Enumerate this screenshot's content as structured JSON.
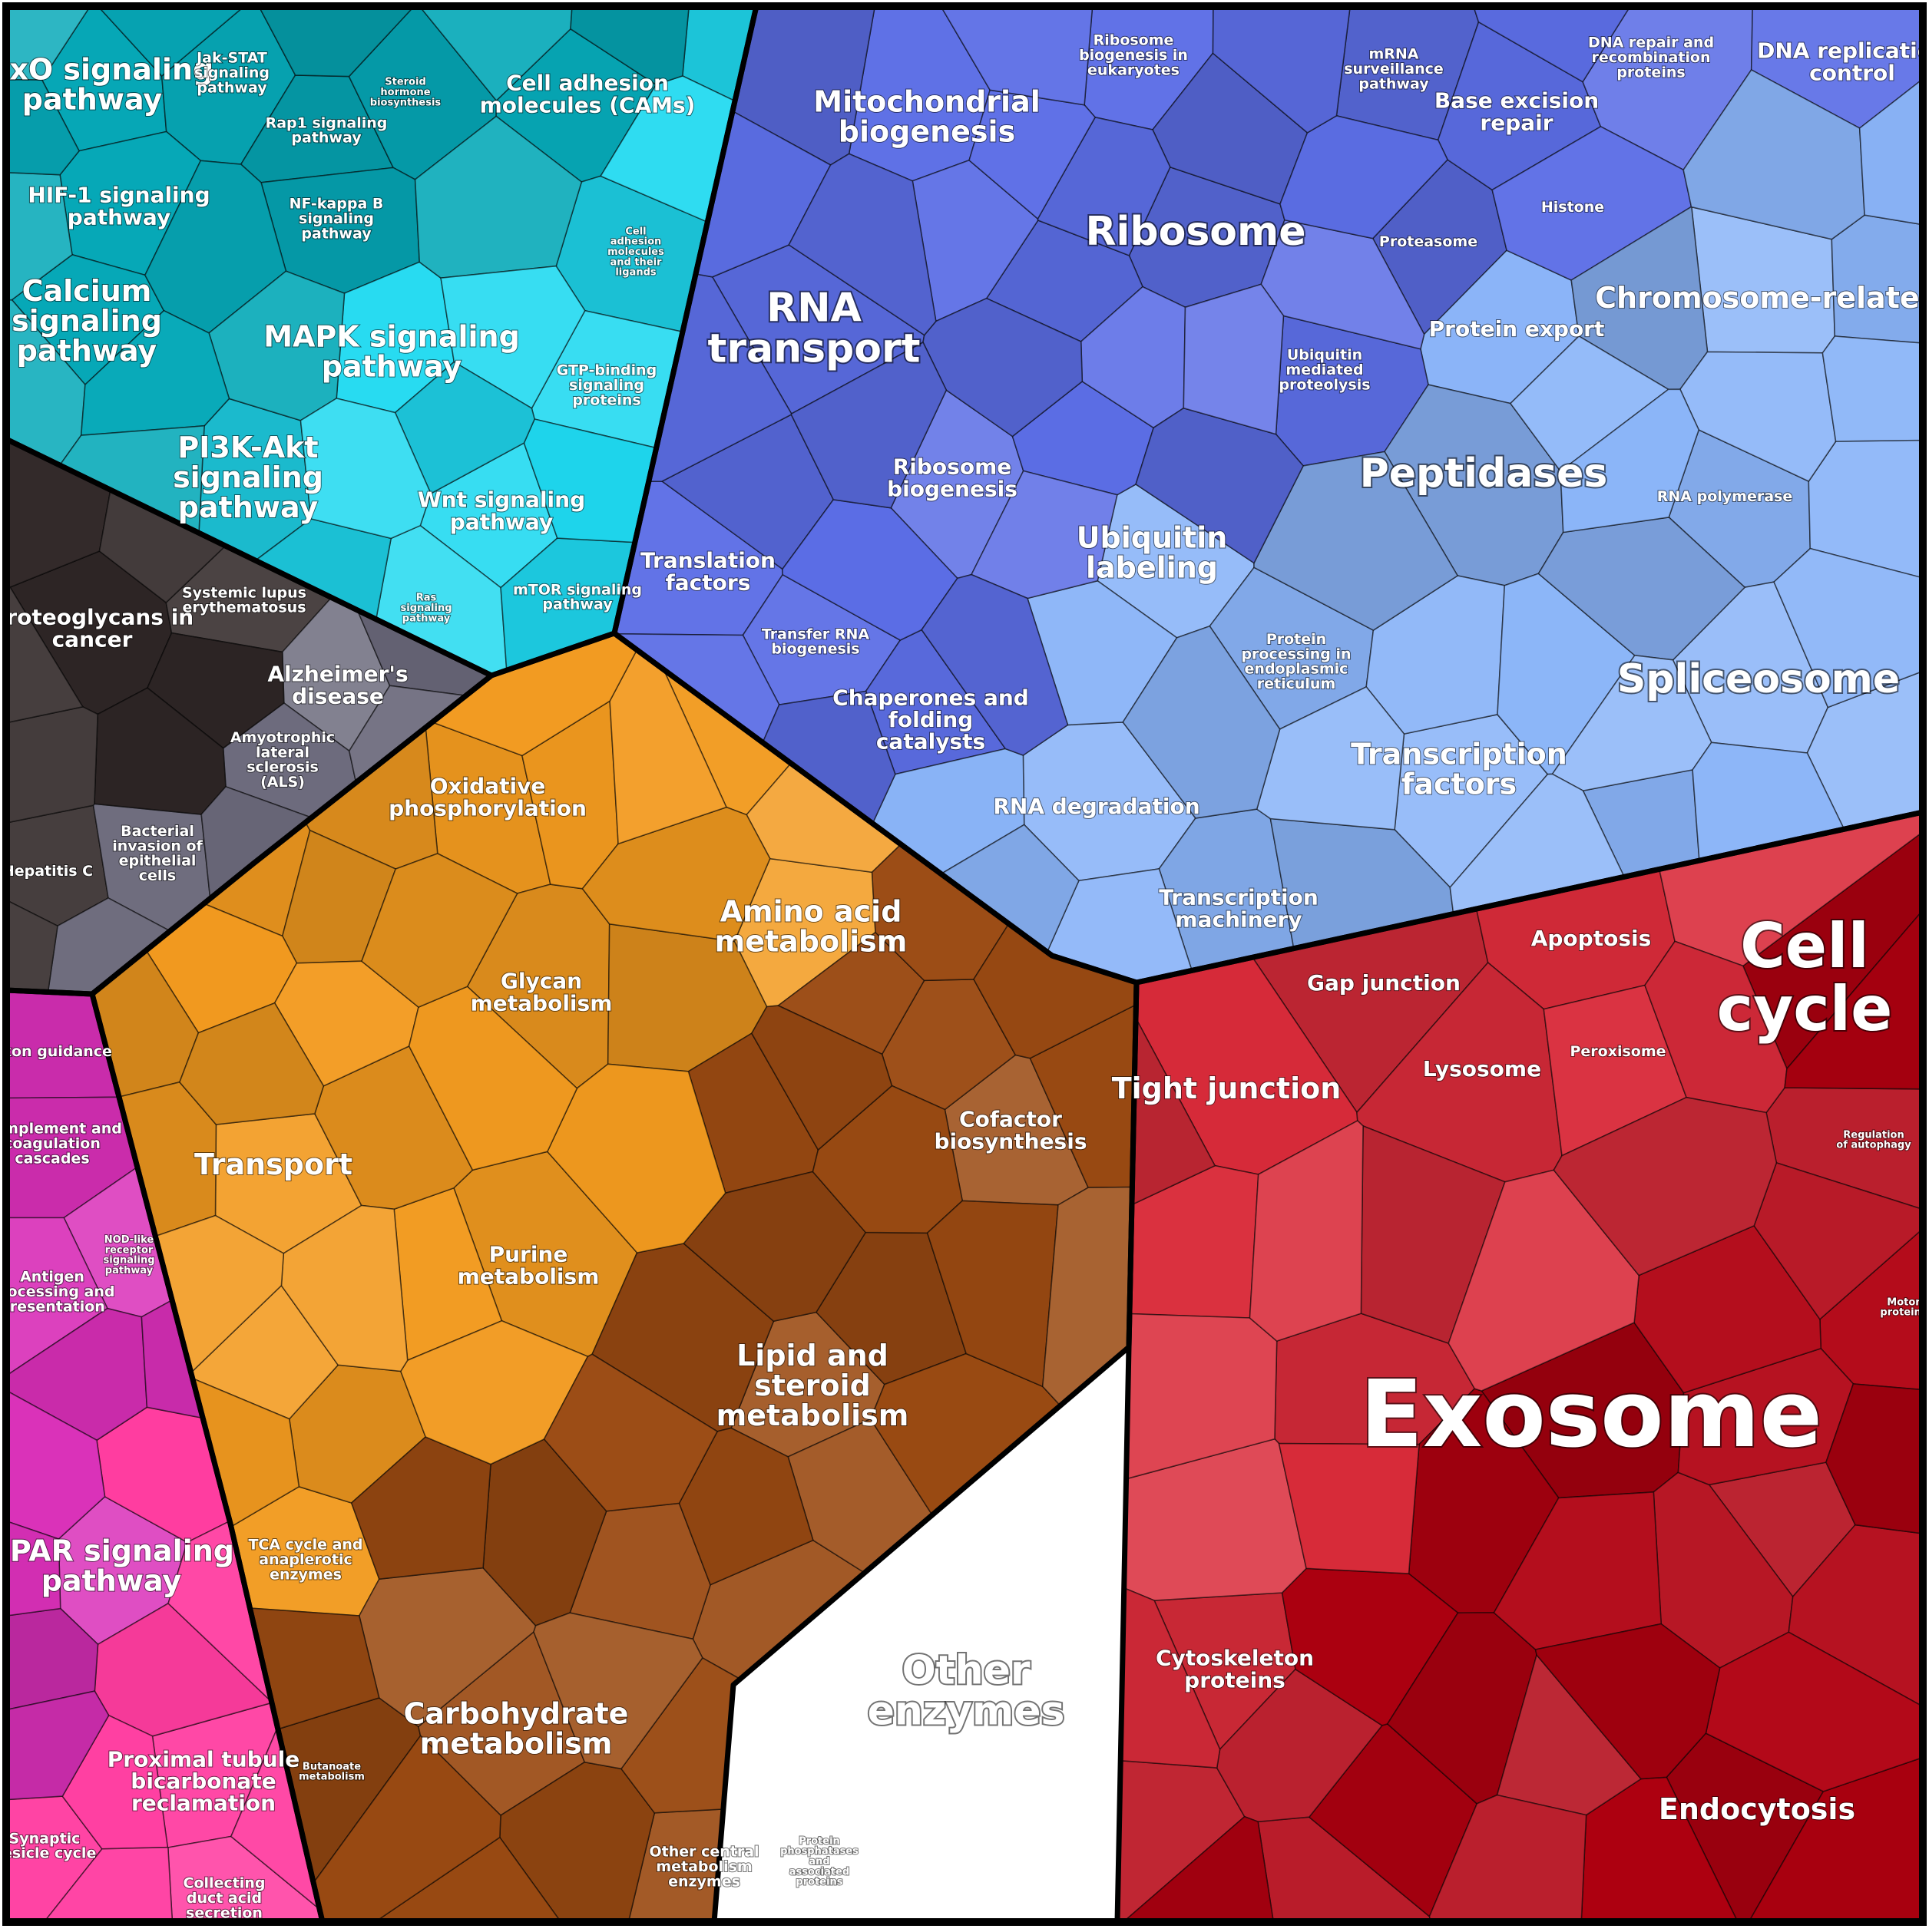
{
  "colors": {
    "signaling_teal": "#06a9b8",
    "signaling_cyan": "#1fd9f0",
    "disease_dark": "#332a2a",
    "genetic_blue": "#5c6ee6",
    "metabolism_orange": "#f29a1f",
    "cellular_red": "#d92b3a",
    "organismal_magenta": "#d92fb8",
    "border": "#000000"
  },
  "groups": [
    {
      "key": "signaling",
      "labels": [
        {
          "text": "FoxO signaling pathway",
          "tier": "l"
        },
        {
          "text": "Jak-STAT signaling pathway",
          "tier": "s"
        },
        {
          "text": "Rap1 signaling pathway",
          "tier": "s"
        },
        {
          "text": "Steroid hormone biosynthesis",
          "tier": "t"
        },
        {
          "text": "Cell adhesion molecules (CAMs)",
          "tier": "m"
        },
        {
          "text": "HIF-1 signaling pathway",
          "tier": "m"
        },
        {
          "text": "NF-kappa B signaling pathway",
          "tier": "s"
        },
        {
          "text": "Calcium signaling pathway",
          "tier": "l"
        },
        {
          "text": "MAPK signaling pathway",
          "tier": "l"
        },
        {
          "text": "Cell adhesion molecules and their ligands",
          "tier": "t"
        },
        {
          "text": "GTP-binding signaling proteins",
          "tier": "s"
        },
        {
          "text": "PI3K-Akt signaling pathway",
          "tier": "l"
        },
        {
          "text": "Wnt signaling pathway",
          "tier": "m"
        },
        {
          "text": "Ras signaling pathway",
          "tier": "t"
        },
        {
          "text": "mTOR signaling pathway",
          "tier": "s"
        }
      ]
    },
    {
      "key": "disease",
      "labels": [
        {
          "text": "Proteoglycans in cancer",
          "tier": "m"
        },
        {
          "text": "Systemic lupus erythematosus",
          "tier": "s"
        },
        {
          "text": "Alzheimer's disease",
          "tier": "m"
        },
        {
          "text": "Amyotrophic lateral sclerosis (ALS)",
          "tier": "s"
        },
        {
          "text": "Hepatitis C",
          "tier": "s"
        },
        {
          "text": "Bacterial invasion of epithelial cells",
          "tier": "s"
        }
      ]
    },
    {
      "key": "genetic",
      "labels": [
        {
          "text": "Mitochondrial biogenesis",
          "tier": "l"
        },
        {
          "text": "Ribosome biogenesis in eukaryotes",
          "tier": "s"
        },
        {
          "text": "mRNA surveillance pathway",
          "tier": "s"
        },
        {
          "text": "Ribosome",
          "tier": "xl"
        },
        {
          "text": "RNA transport",
          "tier": "xl"
        },
        {
          "text": "Ribosome biogenesis",
          "tier": "m"
        },
        {
          "text": "Translation factors",
          "tier": "m"
        },
        {
          "text": "Transfer RNA biogenesis",
          "tier": "s"
        },
        {
          "text": "Proteasome",
          "tier": "s"
        },
        {
          "text": "Protein export",
          "tier": "m"
        },
        {
          "text": "Ubiquitin mediated proteolysis",
          "tier": "s"
        },
        {
          "text": "Peptidases",
          "tier": "xl"
        },
        {
          "text": "Ubiquitin labeling",
          "tier": "l"
        },
        {
          "text": "Protein processing in endoplasmic reticulum",
          "tier": "s"
        },
        {
          "text": "Chaperones and folding catalysts",
          "tier": "m"
        },
        {
          "text": "RNA degradation",
          "tier": "m"
        },
        {
          "text": "Base excision repair",
          "tier": "m"
        },
        {
          "text": "DNA repair and recombination proteins",
          "tier": "s"
        },
        {
          "text": "DNA replication control",
          "tier": "m"
        },
        {
          "text": "Histone",
          "tier": "s"
        },
        {
          "text": "Chromosome-related",
          "tier": "l"
        },
        {
          "text": "RNA polymerase",
          "tier": "s"
        },
        {
          "text": "Spliceosome",
          "tier": "xl"
        },
        {
          "text": "Transcription factors",
          "tier": "l"
        },
        {
          "text": "Transcription machinery",
          "tier": "m"
        }
      ]
    },
    {
      "key": "metabolism",
      "labels": [
        {
          "text": "Oxidative phosphorylation",
          "tier": "m"
        },
        {
          "text": "Amino acid metabolism",
          "tier": "l"
        },
        {
          "text": "Glycan metabolism",
          "tier": "m"
        },
        {
          "text": "Cofactor biosynthesis",
          "tier": "m"
        },
        {
          "text": "Purine metabolism",
          "tier": "m"
        },
        {
          "text": "Lipid and steroid metabolism",
          "tier": "l"
        },
        {
          "text": "Transport",
          "tier": "l"
        },
        {
          "text": "TCA cycle and anaplerotic enzymes",
          "tier": "s"
        },
        {
          "text": "Butanoate metabolism",
          "tier": "t"
        },
        {
          "text": "Carbohydrate metabolism",
          "tier": "l"
        },
        {
          "text": "Other central metabolism enzymes",
          "tier": "s"
        },
        {
          "text": "Protein phosphatases and associated proteins",
          "tier": "t"
        },
        {
          "text": "Other enzymes",
          "tier": "xl"
        }
      ]
    },
    {
      "key": "cellular",
      "labels": [
        {
          "text": "Gap junction",
          "tier": "m"
        },
        {
          "text": "Apoptosis",
          "tier": "m"
        },
        {
          "text": "Cell cycle",
          "tier": "xxl"
        },
        {
          "text": "Tight junction",
          "tier": "l"
        },
        {
          "text": "Lysosome",
          "tier": "m"
        },
        {
          "text": "Peroxisome",
          "tier": "s"
        },
        {
          "text": "Regulation of autophagy",
          "tier": "t"
        },
        {
          "text": "Motor proteins",
          "tier": "t"
        },
        {
          "text": "Exosome",
          "tier": "xxxl"
        },
        {
          "text": "Cytoskeleton proteins",
          "tier": "m"
        },
        {
          "text": "Endocytosis",
          "tier": "l"
        }
      ]
    },
    {
      "key": "organismal",
      "labels": [
        {
          "text": "Axon guidance",
          "tier": "s"
        },
        {
          "text": "Complement and coagulation cascades",
          "tier": "s"
        },
        {
          "text": "NOD-like receptor signaling pathway",
          "tier": "t"
        },
        {
          "text": "Antigen processing and presentation",
          "tier": "s"
        },
        {
          "text": "PPAR signaling pathway",
          "tier": "l"
        },
        {
          "text": "Proximal tubule bicarbonate reclamation",
          "tier": "m"
        },
        {
          "text": "Synaptic vesicle cycle",
          "tier": "s"
        },
        {
          "text": "Collecting duct acid secretion",
          "tier": "s"
        }
      ]
    }
  ]
}
